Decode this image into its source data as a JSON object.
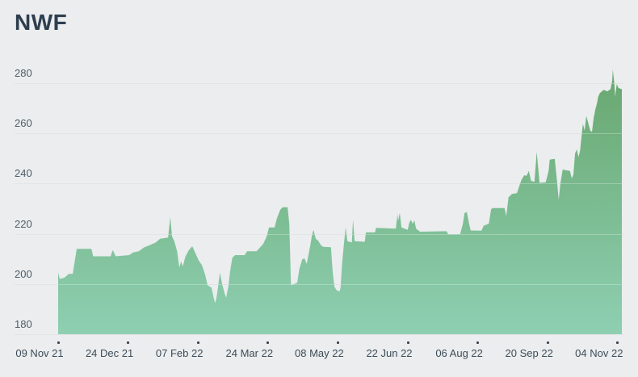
{
  "header": {
    "title": "NWF"
  },
  "chart_data": {
    "type": "area",
    "title": "NWF",
    "legend": "none",
    "gridlines": "horizontal",
    "x_axis": {
      "tick_labels": [
        "09 Nov 21",
        "24 Dec 21",
        "07 Feb 22",
        "24 Mar 22",
        "08 May 22",
        "22 Jun 22",
        "06 Aug 22",
        "20 Sep 22",
        "04 Nov 22"
      ]
    },
    "y_axis": {
      "ticks": [
        280,
        260,
        240,
        220,
        200,
        180
      ],
      "ylim": [
        180,
        286
      ]
    },
    "colors": {
      "background": "#ebedee",
      "title_text": "#2d3e4e",
      "axis_text": "#4e5d6a",
      "x_axis_text": "#3d4c58",
      "gridline": "#d8dadb",
      "tick_mark": "#39444e",
      "fill_top": "#68a76e",
      "fill_bottom": "#8ecfb2"
    },
    "points": [
      [
        0,
        204.5
      ],
      [
        0.003,
        202
      ],
      [
        0.011,
        202.5
      ],
      [
        0.019,
        204
      ],
      [
        0.026,
        204
      ],
      [
        0.033,
        214
      ],
      [
        0.059,
        214
      ],
      [
        0.062,
        211
      ],
      [
        0.093,
        211
      ],
      [
        0.097,
        213.5
      ],
      [
        0.102,
        211
      ],
      [
        0.126,
        211.5
      ],
      [
        0.133,
        212.5
      ],
      [
        0.143,
        213
      ],
      [
        0.152,
        214.5
      ],
      [
        0.163,
        215.5
      ],
      [
        0.173,
        216.5
      ],
      [
        0.181,
        218
      ],
      [
        0.195,
        218.5
      ],
      [
        0.199,
        226.5
      ],
      [
        0.202,
        219
      ],
      [
        0.206,
        217
      ],
      [
        0.211,
        213
      ],
      [
        0.215,
        206.5
      ],
      [
        0.218,
        209
      ],
      [
        0.221,
        207
      ],
      [
        0.226,
        211
      ],
      [
        0.232,
        213.5
      ],
      [
        0.238,
        215
      ],
      [
        0.244,
        212
      ],
      [
        0.249,
        209.5
      ],
      [
        0.255,
        207.5
      ],
      [
        0.261,
        203.5
      ],
      [
        0.265,
        199.5
      ],
      [
        0.272,
        198.5
      ],
      [
        0.277,
        193.5
      ],
      [
        0.279,
        192.5
      ],
      [
        0.282,
        196
      ],
      [
        0.287,
        204.5
      ],
      [
        0.291,
        200
      ],
      [
        0.295,
        196.5
      ],
      [
        0.298,
        194.5
      ],
      [
        0.302,
        199
      ],
      [
        0.305,
        205
      ],
      [
        0.309,
        210.5
      ],
      [
        0.314,
        211.5
      ],
      [
        0.331,
        211.5
      ],
      [
        0.335,
        213
      ],
      [
        0.352,
        213
      ],
      [
        0.358,
        214.5
      ],
      [
        0.364,
        216
      ],
      [
        0.37,
        219
      ],
      [
        0.374,
        222.5
      ],
      [
        0.384,
        222.5
      ],
      [
        0.388,
        226
      ],
      [
        0.394,
        229.5
      ],
      [
        0.398,
        230.5
      ],
      [
        0.407,
        230.5
      ],
      [
        0.41,
        224
      ],
      [
        0.413,
        199.5
      ],
      [
        0.424,
        200.5
      ],
      [
        0.428,
        206
      ],
      [
        0.433,
        209.8
      ],
      [
        0.437,
        210.2
      ],
      [
        0.441,
        208
      ],
      [
        0.447,
        215
      ],
      [
        0.45,
        219
      ],
      [
        0.453,
        221.5
      ],
      [
        0.457,
        218
      ],
      [
        0.461,
        217.3
      ],
      [
        0.466,
        215.5
      ],
      [
        0.47,
        214.8
      ],
      [
        0.484,
        214.6
      ],
      [
        0.487,
        205
      ],
      [
        0.49,
        199
      ],
      [
        0.494,
        197.5
      ],
      [
        0.499,
        197
      ],
      [
        0.501,
        198.5
      ],
      [
        0.504,
        209
      ],
      [
        0.507,
        216
      ],
      [
        0.51,
        222.5
      ],
      [
        0.513,
        217
      ],
      [
        0.521,
        216.5
      ],
      [
        0.523,
        225.5
      ],
      [
        0.526,
        217
      ],
      [
        0.544,
        216.8
      ],
      [
        0.546,
        220.5
      ],
      [
        0.562,
        220.5
      ],
      [
        0.564,
        222.3
      ],
      [
        0.599,
        222
      ],
      [
        0.602,
        227.8
      ],
      [
        0.603,
        225
      ],
      [
        0.606,
        228.3
      ],
      [
        0.609,
        222.5
      ],
      [
        0.62,
        221.5
      ],
      [
        0.623,
        224.5
      ],
      [
        0.626,
        225.5
      ],
      [
        0.629,
        224
      ],
      [
        0.632,
        225.3
      ],
      [
        0.635,
        222
      ],
      [
        0.642,
        220.8
      ],
      [
        0.689,
        221
      ],
      [
        0.692,
        219.8
      ],
      [
        0.713,
        219.8
      ],
      [
        0.718,
        224
      ],
      [
        0.721,
        228.3
      ],
      [
        0.725,
        228.6
      ],
      [
        0.729,
        224
      ],
      [
        0.732,
        221.3
      ],
      [
        0.751,
        221.2
      ],
      [
        0.755,
        223.2
      ],
      [
        0.764,
        224
      ],
      [
        0.768,
        229.8
      ],
      [
        0.771,
        230.2
      ],
      [
        0.792,
        230.2
      ],
      [
        0.795,
        227
      ],
      [
        0.799,
        234.5
      ],
      [
        0.805,
        235.8
      ],
      [
        0.814,
        236.2
      ],
      [
        0.818,
        239
      ],
      [
        0.822,
        241.5
      ],
      [
        0.827,
        243.3
      ],
      [
        0.831,
        243
      ],
      [
        0.835,
        245
      ],
      [
        0.839,
        241
      ],
      [
        0.845,
        240.7
      ],
      [
        0.849,
        252.5
      ],
      [
        0.854,
        240.2
      ],
      [
        0.865,
        240.5
      ],
      [
        0.87,
        245
      ],
      [
        0.872,
        249.5
      ],
      [
        0.881,
        249.8
      ],
      [
        0.885,
        241
      ],
      [
        0.888,
        233.5
      ],
      [
        0.891,
        240
      ],
      [
        0.895,
        245.5
      ],
      [
        0.908,
        245
      ],
      [
        0.911,
        242
      ],
      [
        0.914,
        243.5
      ],
      [
        0.917,
        252
      ],
      [
        0.92,
        253.5
      ],
      [
        0.923,
        250.5
      ],
      [
        0.926,
        253
      ],
      [
        0.928,
        257.5
      ],
      [
        0.931,
        263.8
      ],
      [
        0.934,
        261
      ],
      [
        0.937,
        266.8
      ],
      [
        0.941,
        263.5
      ],
      [
        0.944,
        261
      ],
      [
        0.947,
        260.5
      ],
      [
        0.95,
        266
      ],
      [
        0.953,
        269.5
      ],
      [
        0.956,
        272
      ],
      [
        0.958,
        274.5
      ],
      [
        0.961,
        276
      ],
      [
        0.968,
        277.3
      ],
      [
        0.974,
        276.6
      ],
      [
        0.98,
        277.5
      ],
      [
        0.983,
        281
      ],
      [
        0.984,
        285.3
      ],
      [
        0.987,
        279
      ],
      [
        0.988,
        274.5
      ],
      [
        0.991,
        279.5
      ],
      [
        0.994,
        278
      ],
      [
        1,
        277.5
      ]
    ]
  }
}
